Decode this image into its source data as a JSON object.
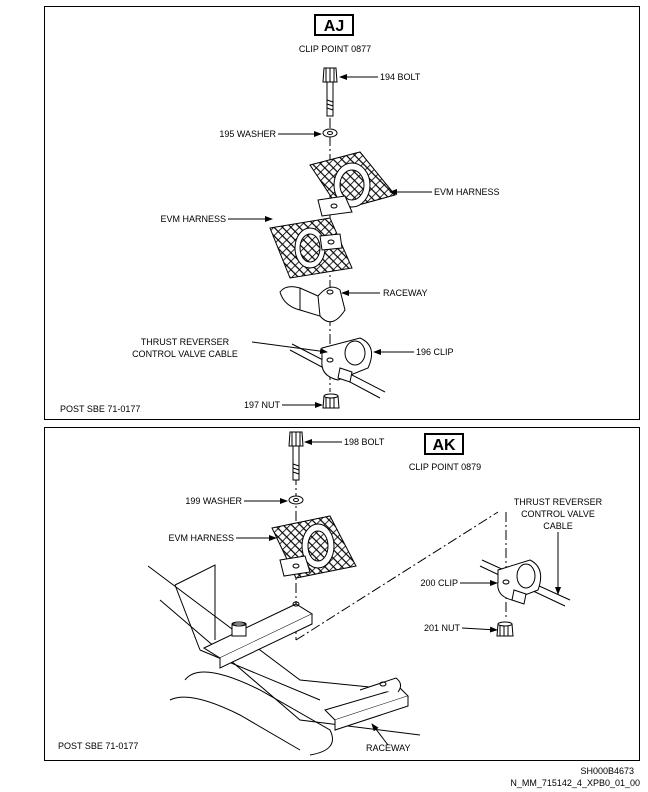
{
  "panel_aj": {
    "badge": "AJ",
    "title": "CLIP POINT 0877",
    "labels": {
      "bolt": "194 BOLT",
      "washer": "195 WASHER",
      "harness_right": "EVM HARNESS",
      "harness_left": "EVM HARNESS",
      "raceway": "RACEWAY",
      "cable_line1": "THRUST REVERSER",
      "cable_line2": "CONTROL VALVE CABLE",
      "clip": "196 CLIP",
      "nut": "197 NUT"
    },
    "footer": "POST SBE 71-0177"
  },
  "panel_ak": {
    "badge": "AK",
    "title": "CLIP POINT 0879",
    "labels": {
      "bolt": "198 BOLT",
      "washer": "199 WASHER",
      "harness": "EVM HARNESS",
      "cable_line1": "THRUST REVERSER",
      "cable_line2": "CONTROL VALVE",
      "cable_line3": "CABLE",
      "clip": "200 CLIP",
      "nut": "201 NUT",
      "raceway": "RACEWAY"
    },
    "footer": "POST SBE 71-0177"
  },
  "sheet_code": "SH000B4673",
  "file_code": "N_MM_715142_4_XPB0_01_00"
}
